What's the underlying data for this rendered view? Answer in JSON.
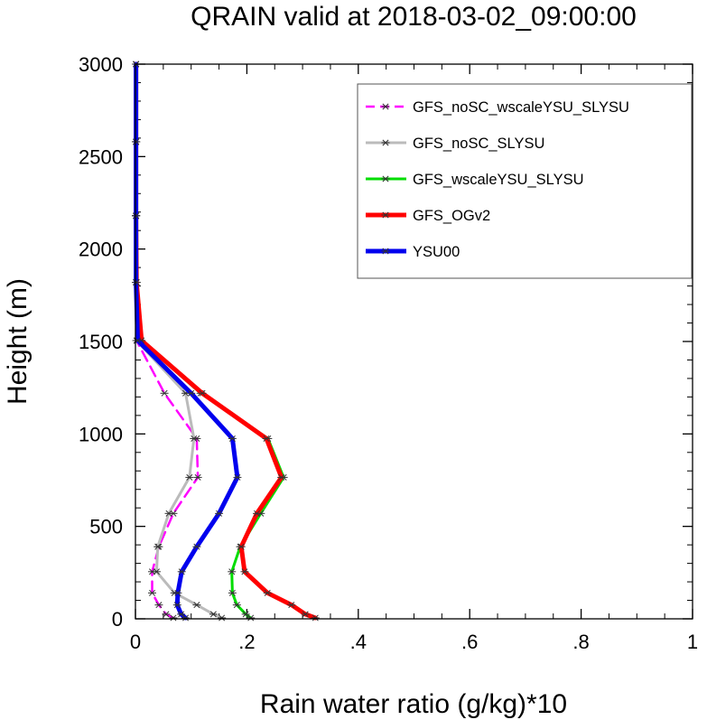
{
  "chart_data": {
    "type": "line",
    "title": "QRAIN valid at 2018-03-02_09:00:00",
    "xlabel": "Rain water ratio (g/kg)*10",
    "ylabel": "Height (m)",
    "xlim": [
      0,
      1
    ],
    "ylim": [
      0,
      3000
    ],
    "xticks": [
      0,
      0.2,
      0.4,
      0.6,
      0.8,
      1
    ],
    "xtick_labels": [
      "0",
      ".2",
      ".4",
      ".6",
      ".8",
      "1"
    ],
    "yticks": [
      0,
      500,
      1000,
      1500,
      2000,
      2500,
      3000
    ],
    "ytick_labels": [
      "0",
      "500",
      "1000",
      "1500",
      "2000",
      "2500",
      "3000"
    ],
    "legend_position": "top-right",
    "grid": false,
    "heights": [
      5,
      25,
      75,
      140,
      255,
      390,
      570,
      765,
      975,
      1220,
      1505,
      1820,
      2180,
      2580,
      3000
    ],
    "series": [
      {
        "name": "GFS_noSC_wscaleYSU_SLYSU",
        "color": "#ff00ff",
        "dash": "dashed",
        "width": 2.5,
        "x": [
          0.068,
          0.055,
          0.042,
          0.03,
          0.03,
          0.042,
          0.068,
          0.112,
          0.11,
          0.052,
          0.002,
          0.001,
          0.001,
          0.001,
          0.001
        ]
      },
      {
        "name": "GFS_noSC_SLYSU",
        "color": "#bbbbbb",
        "dash": "solid",
        "width": 3,
        "x": [
          0.155,
          0.14,
          0.11,
          0.07,
          0.038,
          0.04,
          0.06,
          0.097,
          0.105,
          0.09,
          0.002,
          0.001,
          0.001,
          0.001,
          0.001
        ]
      },
      {
        "name": "GFS_wscaleYSU_SLYSU",
        "color": "#00dd00",
        "dash": "solid",
        "width": 3,
        "x": [
          0.207,
          0.198,
          0.182,
          0.174,
          0.173,
          0.188,
          0.225,
          0.266,
          0.238,
          0.117,
          0.01,
          0.002,
          0.001,
          0.001,
          0.001
        ]
      },
      {
        "name": "GFS_OGv2",
        "color": "#ff0000",
        "dash": "solid",
        "width": 5,
        "x": [
          0.323,
          0.305,
          0.28,
          0.237,
          0.196,
          0.19,
          0.218,
          0.262,
          0.235,
          0.12,
          0.011,
          0.002,
          0.001,
          0.001,
          0.001
        ]
      },
      {
        "name": "YSU00",
        "color": "#0000ee",
        "dash": "solid",
        "width": 5,
        "x": [
          0.09,
          0.082,
          0.075,
          0.076,
          0.083,
          0.11,
          0.15,
          0.183,
          0.174,
          0.1,
          0.004,
          0.001,
          0.001,
          0.001,
          0.001
        ]
      }
    ]
  }
}
